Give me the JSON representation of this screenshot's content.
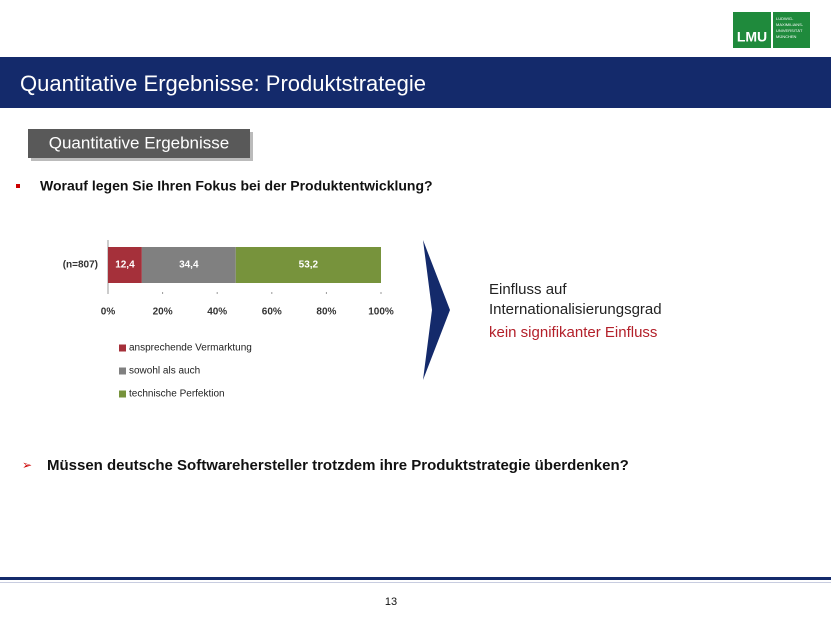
{
  "header": {
    "title": "Quantitative Ergebnisse: Produktstrategie"
  },
  "logo": {
    "text": "LMU",
    "subtitle": [
      "LUDWIG-",
      "MAXIMILIANS-",
      "UNIVERSITÄT",
      "MÜNCHEN"
    ]
  },
  "section_label": "Quantitative Ergebnisse",
  "question": "Worauf legen Sie Ihren Fokus bei der Produktentwicklung?",
  "chart_data": {
    "type": "stacked_bar",
    "categories": [
      "(n=807)"
    ],
    "series": [
      {
        "name": "ansprechende Vermarktung",
        "color": "#a5303a",
        "values": [
          12.4
        ],
        "value_labels": [
          "12,4"
        ]
      },
      {
        "name": "sowohl als auch",
        "color": "#808080",
        "values": [
          34.4
        ],
        "value_labels": [
          "34,4"
        ]
      },
      {
        "name": "technische Perfektion",
        "color": "#77933c",
        "values": [
          53.2
        ],
        "value_labels": [
          "53,2"
        ]
      }
    ],
    "xlim": [
      0,
      100
    ],
    "xticks": [
      {
        "value": 0,
        "label": "0%"
      },
      {
        "value": 20,
        "label": "20%"
      },
      {
        "value": 40,
        "label": "40%"
      },
      {
        "value": 60,
        "label": "60%"
      },
      {
        "value": 80,
        "label": "80%"
      },
      {
        "value": 100,
        "label": "100%"
      }
    ]
  },
  "callout": {
    "lines": [
      "Einfluss auf",
      "Internationalisierungsgrad"
    ],
    "highlight": "kein signifikanter Einfluss"
  },
  "conclusion": "Müssen deutsche Softwarehersteller trotzdem ihre Produktstrategie überdenken?",
  "page_number": "13"
}
